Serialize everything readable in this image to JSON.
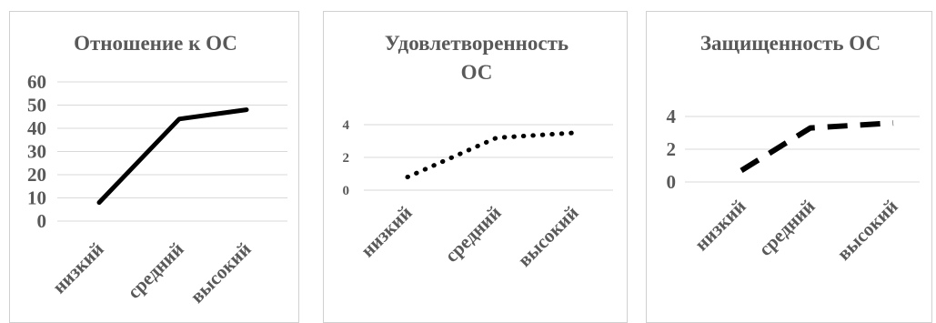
{
  "chart_data": [
    {
      "type": "line",
      "title": [
        "Отношение  к ОС"
      ],
      "categories": [
        "низкий",
        "средний",
        "высокий"
      ],
      "values": [
        8,
        44,
        48
      ],
      "ylim": [
        0,
        60
      ],
      "yticks": [
        0,
        10,
        20,
        30,
        40,
        50,
        60
      ],
      "line_style": "solid",
      "line_color": "#000000",
      "grid": true,
      "legend": "none"
    },
    {
      "type": "line",
      "title": [
        "Удовлетворенность",
        "ОС"
      ],
      "categories": [
        "низкий",
        "средний",
        "высокий"
      ],
      "values": [
        0.8,
        3.2,
        3.5
      ],
      "ylim": [
        0,
        4
      ],
      "yticks": [
        0,
        2,
        4
      ],
      "line_style": "dotted",
      "line_color": "#000000",
      "grid": true,
      "legend": "none"
    },
    {
      "type": "line",
      "title": [
        "Защищенность  ОС"
      ],
      "categories": [
        "низкий",
        "средний",
        "высокий"
      ],
      "values": [
        0.7,
        3.3,
        3.6
      ],
      "ylim": [
        0,
        4
      ],
      "yticks": [
        0,
        2,
        4
      ],
      "line_style": "dashed",
      "line_color": "#000000",
      "grid": true,
      "legend": "none"
    }
  ]
}
